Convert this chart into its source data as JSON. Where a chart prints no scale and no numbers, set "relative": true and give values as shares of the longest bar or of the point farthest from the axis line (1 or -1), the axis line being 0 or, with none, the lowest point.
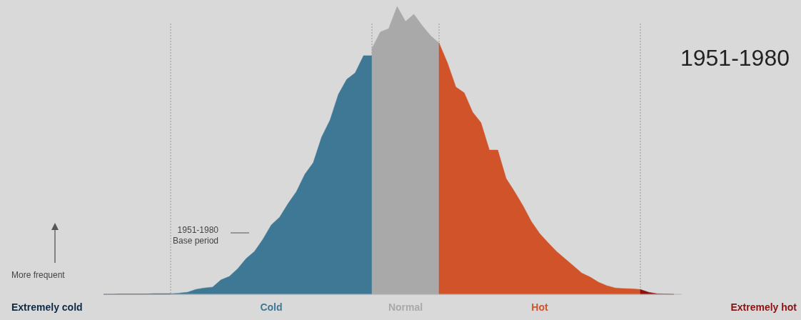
{
  "chart_data": {
    "type": "area",
    "relative": true,
    "title": "1951-1980",
    "legend": false,
    "grid": "x",
    "categories": [
      null,
      null,
      null,
      null,
      null,
      null,
      null,
      null,
      null,
      null,
      null,
      null,
      null,
      null,
      null,
      null,
      null,
      null,
      null,
      null,
      null,
      null,
      null,
      null,
      null,
      null,
      null,
      null,
      null,
      null,
      null,
      null,
      null,
      null,
      null,
      null,
      null,
      null,
      null,
      null,
      null,
      null,
      null,
      null,
      null,
      null,
      null,
      null,
      null,
      null,
      null,
      null,
      null,
      null,
      null,
      null,
      null,
      null,
      null,
      null,
      null,
      null,
      null,
      null,
      null,
      null,
      null,
      null,
      null
    ],
    "annotations": [
      "1951-1980\nBase period",
      "More frequent"
    ],
    "series": [
      {
        "name": "Extremely cold",
        "color": "#0d2a45",
        "values": [
          0,
          0,
          0.001,
          0.001,
          0.001,
          0.001,
          0.002,
          0.002,
          0.002,
          null,
          null,
          null,
          null,
          null,
          null,
          null,
          null,
          null,
          null,
          null,
          null,
          null,
          null,
          null,
          null,
          null,
          null,
          null,
          null,
          null,
          null,
          null,
          null,
          null,
          null,
          null,
          null,
          null,
          null,
          null,
          null,
          null,
          null,
          null,
          null,
          null,
          null,
          null,
          null,
          null,
          null,
          null,
          null,
          null,
          null,
          null,
          null,
          null,
          null,
          null,
          null,
          null,
          null,
          null,
          null,
          null,
          null,
          null,
          null
        ]
      },
      {
        "name": "Cold",
        "color": "#3f7895",
        "values": [
          null,
          null,
          null,
          null,
          null,
          null,
          null,
          null,
          0.002,
          0.004,
          0.007,
          0.017,
          0.022,
          0.025,
          0.05,
          0.062,
          0.089,
          0.124,
          0.149,
          0.191,
          0.241,
          0.268,
          0.315,
          0.357,
          0.417,
          0.457,
          0.546,
          0.605,
          0.695,
          0.747,
          0.769,
          0.829,
          0.829,
          null,
          null,
          null,
          null,
          null,
          null,
          null,
          null,
          null,
          null,
          null,
          null,
          null,
          null,
          null,
          null,
          null,
          null,
          null,
          null,
          null,
          null,
          null,
          null,
          null,
          null,
          null,
          null,
          null,
          null,
          null,
          null,
          null,
          null,
          null,
          null
        ]
      },
      {
        "name": "Normal",
        "color": "#a9a9a9",
        "values": [
          null,
          null,
          null,
          null,
          null,
          null,
          null,
          null,
          null,
          null,
          null,
          null,
          null,
          null,
          null,
          null,
          null,
          null,
          null,
          null,
          null,
          null,
          null,
          null,
          null,
          null,
          null,
          null,
          null,
          null,
          null,
          null,
          0.854,
          0.911,
          0.923,
          1,
          0.948,
          0.973,
          0.933,
          0.898,
          0.873,
          null,
          null,
          null,
          null,
          null,
          null,
          null,
          null,
          null,
          null,
          null,
          null,
          null,
          null,
          null,
          null,
          null,
          null,
          null,
          null,
          null,
          null,
          null,
          null,
          null,
          null,
          null,
          null
        ]
      },
      {
        "name": "Hot",
        "color": "#d0532a",
        "values": [
          null,
          null,
          null,
          null,
          null,
          null,
          null,
          null,
          null,
          null,
          null,
          null,
          null,
          null,
          null,
          null,
          null,
          null,
          null,
          null,
          null,
          null,
          null,
          null,
          null,
          null,
          null,
          null,
          null,
          null,
          null,
          null,
          null,
          null,
          null,
          null,
          null,
          null,
          null,
          null,
          0.873,
          0.804,
          0.72,
          0.7,
          0.633,
          0.596,
          0.501,
          0.501,
          0.402,
          0.357,
          0.308,
          0.253,
          0.211,
          0.179,
          0.149,
          0.124,
          0.099,
          0.074,
          0.06,
          0.042,
          0.03,
          0.022,
          0.02,
          0.019,
          0.017,
          null,
          null,
          null,
          null
        ]
      },
      {
        "name": "Extremely hot",
        "color": "#8b1010",
        "values": [
          null,
          null,
          null,
          null,
          null,
          null,
          null,
          null,
          null,
          null,
          null,
          null,
          null,
          null,
          null,
          null,
          null,
          null,
          null,
          null,
          null,
          null,
          null,
          null,
          null,
          null,
          null,
          null,
          null,
          null,
          null,
          null,
          null,
          null,
          null,
          null,
          null,
          null,
          null,
          null,
          null,
          null,
          null,
          null,
          null,
          null,
          null,
          null,
          null,
          null,
          null,
          null,
          null,
          null,
          null,
          null,
          null,
          null,
          null,
          null,
          null,
          null,
          null,
          null,
          0.017,
          0.007,
          0.002,
          0.001,
          0
        ]
      }
    ]
  }
}
